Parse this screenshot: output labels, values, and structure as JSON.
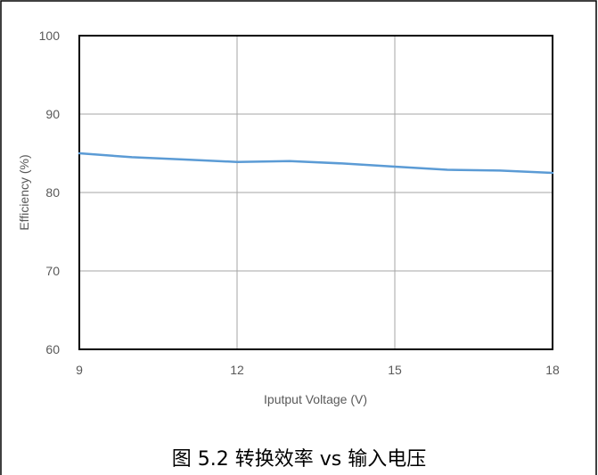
{
  "chart_data": {
    "type": "line",
    "title": "",
    "xlabel": "Iputput Voltage (V)",
    "ylabel": "Efficiency (%)",
    "xlim": [
      9,
      18
    ],
    "ylim": [
      60,
      100
    ],
    "xticks": [
      "9",
      "12",
      "15",
      "18"
    ],
    "yticks": [
      "60",
      "70",
      "80",
      "90",
      "100"
    ],
    "grid": true,
    "legend": "none",
    "line_color": "#5b9bd5",
    "series": [
      {
        "x": [
          9,
          10,
          11,
          12,
          13,
          14,
          15,
          16,
          17,
          18
        ],
        "values": [
          85.0,
          84.5,
          84.2,
          83.9,
          84.0,
          83.7,
          83.3,
          82.9,
          82.8,
          82.5
        ]
      }
    ]
  },
  "caption": "图 5.2 转换效率 vs 输入电压"
}
